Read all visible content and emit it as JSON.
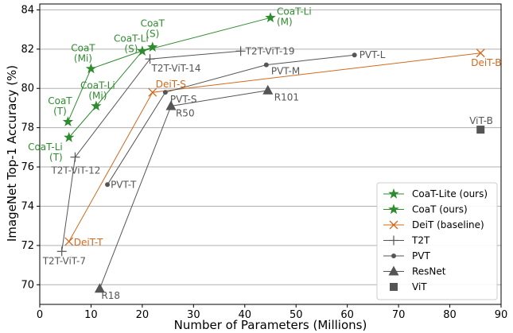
{
  "chart_data": {
    "type": "line",
    "xlabel": "Number of Parameters (Millions)",
    "ylabel": "ImageNet Top-1 Accuracy (%)",
    "xlim": [
      0,
      90
    ],
    "ylim": [
      69,
      84.3
    ],
    "xticks": [
      0,
      10,
      20,
      30,
      40,
      50,
      60,
      70,
      80,
      90
    ],
    "yticks": [
      70,
      72,
      74,
      76,
      78,
      80,
      82,
      84
    ],
    "grid": "horizontal",
    "legend_position": "bottom-right",
    "series": [
      {
        "name": "CoaT-Lite (ours)",
        "color": "#2e8b2e",
        "marker": "star",
        "line": true,
        "points": [
          {
            "x": 5.7,
            "y": 77.5,
            "label": "CoaT-Li\n(T)"
          },
          {
            "x": 11.0,
            "y": 79.1,
            "label": "CoaT-Li\n(Mi)"
          },
          {
            "x": 20.0,
            "y": 81.9,
            "label": "CoaT-Li\n(S)"
          },
          {
            "x": 45.0,
            "y": 83.6,
            "label": "CoaT-Li\n(M)"
          }
        ]
      },
      {
        "name": "CoaT (ours)",
        "color": "#2e8b2e",
        "marker": "star",
        "line": true,
        "points": [
          {
            "x": 5.5,
            "y": 78.3,
            "label": "CoaT\n(T)"
          },
          {
            "x": 10.0,
            "y": 81.0,
            "label": "CoaT\n(Mi)"
          },
          {
            "x": 22.0,
            "y": 82.1,
            "label": "CoaT\n(S)"
          }
        ]
      },
      {
        "name": "DeiT (baseline)",
        "color": "#d2691e",
        "marker": "x",
        "line": true,
        "points": [
          {
            "x": 5.7,
            "y": 72.2,
            "label": "DeiT-T"
          },
          {
            "x": 22.0,
            "y": 79.8,
            "label": "DeiT-S"
          },
          {
            "x": 86.0,
            "y": 81.8,
            "label": "DeiT-B"
          }
        ]
      },
      {
        "name": "T2T",
        "color": "#555555",
        "marker": "plus",
        "line": true,
        "points": [
          {
            "x": 4.3,
            "y": 71.7,
            "label": "T2T-ViT-7"
          },
          {
            "x": 6.9,
            "y": 76.5,
            "label": "T2T-ViT-12"
          },
          {
            "x": 21.5,
            "y": 81.5,
            "label": "T2T-ViT-14"
          },
          {
            "x": 39.2,
            "y": 81.9,
            "label": "T2T-ViT-19"
          }
        ]
      },
      {
        "name": "PVT",
        "color": "#555555",
        "marker": "circle",
        "line": true,
        "points": [
          {
            "x": 13.2,
            "y": 75.1,
            "label": "PVT-T"
          },
          {
            "x": 24.5,
            "y": 79.8,
            "label": "PVT-S"
          },
          {
            "x": 44.2,
            "y": 81.2,
            "label": "PVT-M"
          },
          {
            "x": 61.4,
            "y": 81.7,
            "label": "PVT-L"
          }
        ]
      },
      {
        "name": "ResNet",
        "color": "#555555",
        "marker": "triangle",
        "line": true,
        "points": [
          {
            "x": 11.7,
            "y": 69.8,
            "label": "R18"
          },
          {
            "x": 25.6,
            "y": 79.1,
            "label": "R50"
          },
          {
            "x": 44.5,
            "y": 79.9,
            "label": "R101"
          }
        ]
      },
      {
        "name": "ViT",
        "color": "#555555",
        "marker": "square",
        "line": false,
        "points": [
          {
            "x": 86.0,
            "y": 77.9,
            "label": "ViT-B"
          }
        ]
      }
    ]
  }
}
